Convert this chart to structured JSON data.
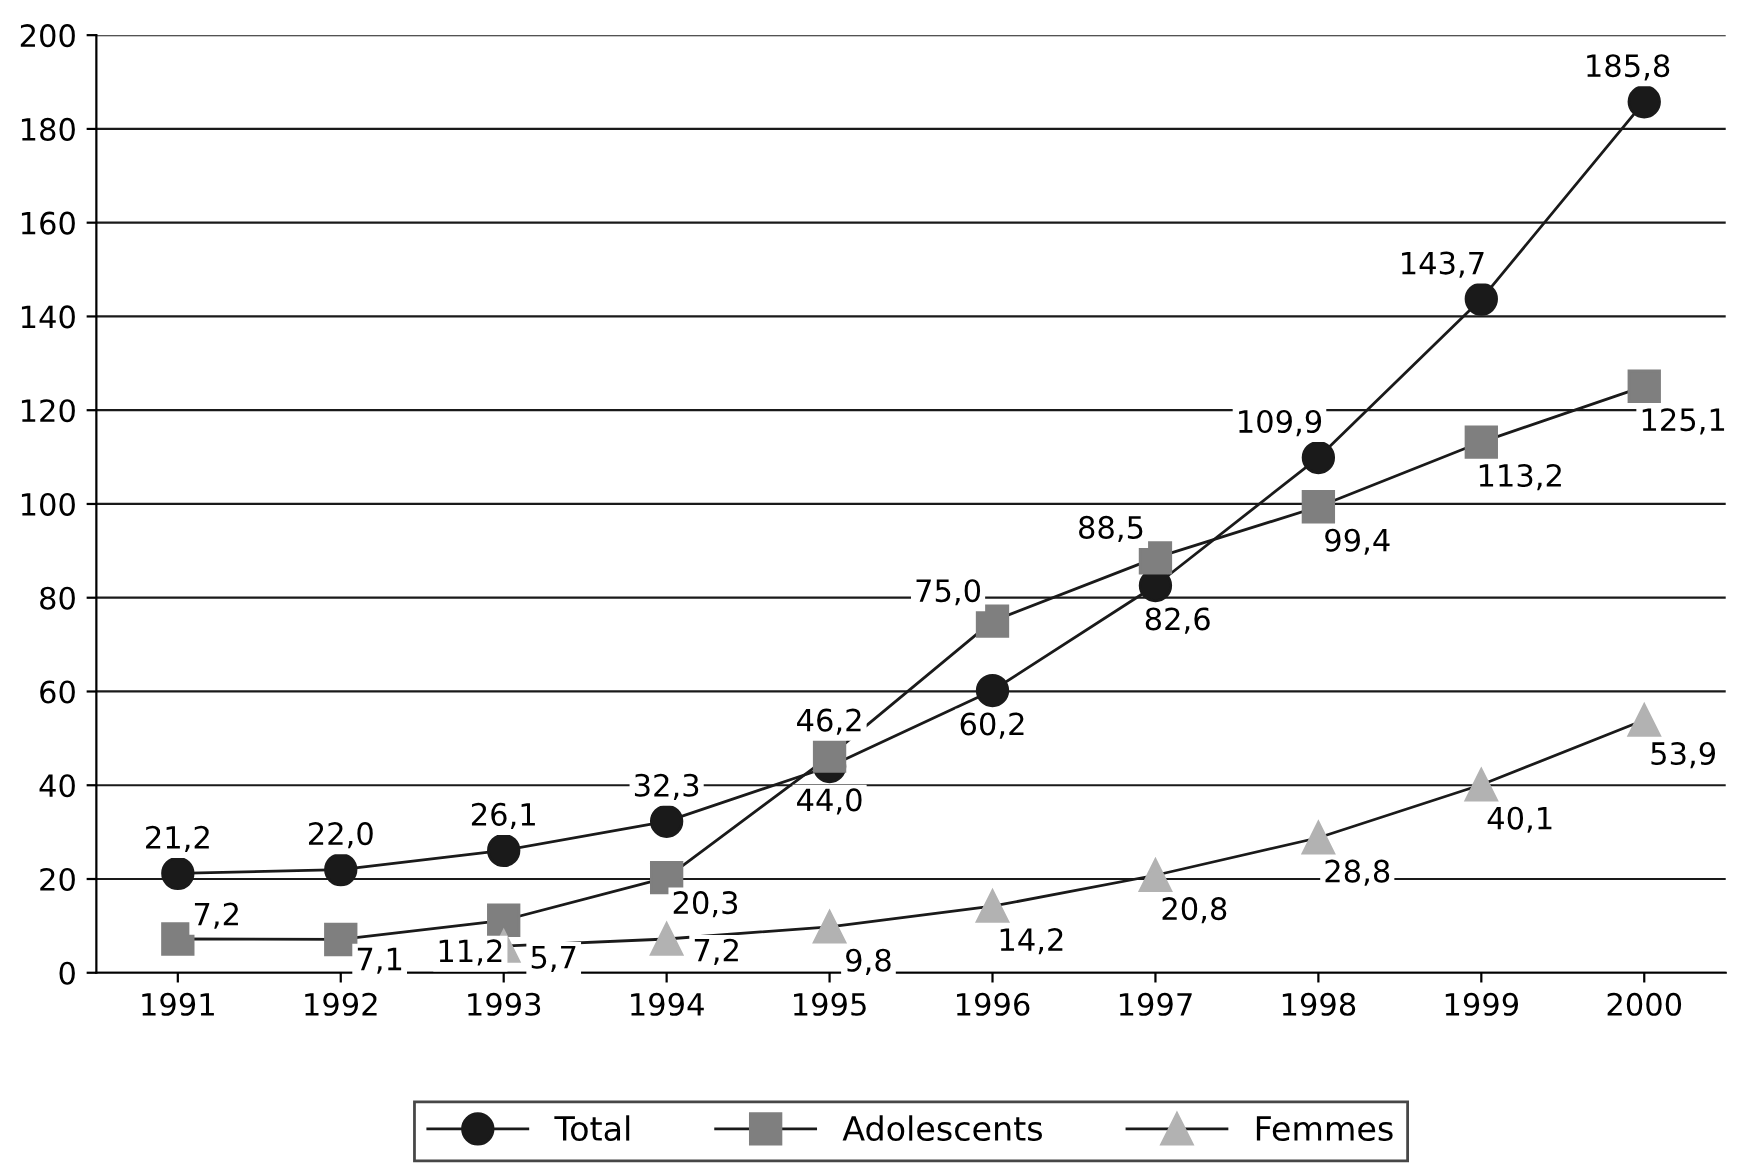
{
  "chart_data": {
    "type": "line",
    "categories": [
      "1991",
      "1992",
      "1993",
      "1994",
      "1995",
      "1996",
      "1997",
      "1998",
      "1999",
      "2000"
    ],
    "series": [
      {
        "name": "Total",
        "color": "#1a1a1a",
        "marker": "circle",
        "values": [
          21.2,
          22.0,
          26.1,
          32.3,
          44.0,
          60.2,
          82.6,
          109.9,
          143.7,
          185.8
        ],
        "value_labels": [
          "21,2",
          "22,0",
          "26,1",
          "32,3",
          "44,0",
          "60,2",
          "82,6",
          "109,9",
          "143,7",
          "185,8"
        ]
      },
      {
        "name": "Adolescents",
        "color": "#7f7f7f",
        "marker": "square",
        "values": [
          7.2,
          7.1,
          11.2,
          20.3,
          46.2,
          75.0,
          88.5,
          99.4,
          113.2,
          125.1
        ],
        "value_labels": [
          "7,2",
          "7,1",
          "11,2",
          "20,3",
          "46,2",
          "75,0",
          "88,5",
          "99,4",
          "113,2",
          "125,1"
        ]
      },
      {
        "name": "Femmes",
        "color": "#b2b2b2",
        "marker": "triangle",
        "values": [
          null,
          null,
          5.7,
          7.2,
          9.8,
          14.2,
          20.8,
          28.8,
          40.1,
          53.9
        ],
        "value_labels": [
          null,
          null,
          "5,7",
          "7,2",
          "9,8",
          "14,2",
          "20,8",
          "28,8",
          "40,1",
          "53,9"
        ]
      }
    ],
    "ylim": [
      0,
      200
    ],
    "yticks": [
      0,
      20,
      40,
      60,
      80,
      100,
      120,
      140,
      160,
      180,
      200
    ],
    "grid": "y",
    "legend": "bottom",
    "line_style": "solid"
  }
}
